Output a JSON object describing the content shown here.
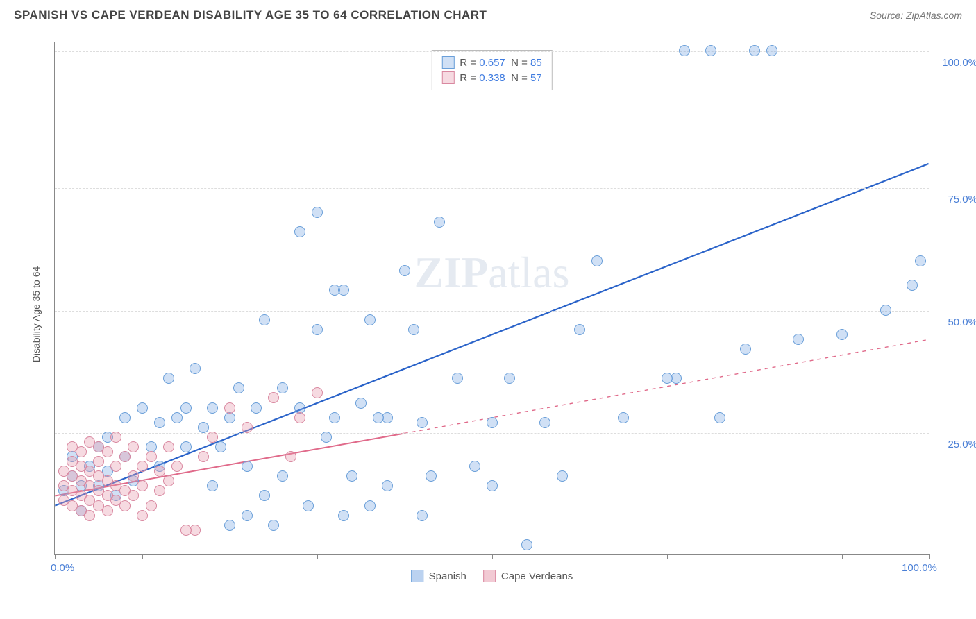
{
  "header": {
    "title": "SPANISH VS CAPE VERDEAN DISABILITY AGE 35 TO 64 CORRELATION CHART",
    "source_prefix": "Source: ",
    "source_name": "ZipAtlas.com"
  },
  "ylabel": "Disability Age 35 to 64",
  "watermark": {
    "zip": "ZIP",
    "atlas": "atlas"
  },
  "chart": {
    "type": "scatter-with-regression",
    "background_color": "#ffffff",
    "grid_color": "#dddddd",
    "axis_color": "#888888",
    "xlim": [
      0,
      100
    ],
    "ylim": [
      0,
      105
    ],
    "x_ticks": [
      0,
      10,
      20,
      30,
      40,
      50,
      60,
      70,
      80,
      90,
      100
    ],
    "x_tick_labels_shown": {
      "0": "0.0%",
      "100": "100.0%"
    },
    "y_gridlines": [
      25,
      50,
      75,
      103
    ],
    "y_tick_labels": {
      "25": "25.0%",
      "50": "50.0%",
      "75": "75.0%",
      "103": "100.0%"
    },
    "tick_label_color": "#4a7fd6",
    "tick_fontsize": 15,
    "title_fontsize": 17,
    "marker_radius": 8,
    "marker_stroke_width": 1,
    "series": [
      {
        "name": "Spanish",
        "color_fill": "rgba(120,165,225,0.35)",
        "color_stroke": "#6a9fd9",
        "line_color": "#2a63c9",
        "line_width": 2.2,
        "line_dash": "none",
        "stats": {
          "R": "0.657",
          "N": "85"
        },
        "regression": {
          "x1": 0,
          "y1": 10,
          "x2": 100,
          "y2": 80,
          "solid_end_x": 100
        },
        "points": [
          [
            1,
            13
          ],
          [
            2,
            16
          ],
          [
            2,
            20
          ],
          [
            3,
            9
          ],
          [
            3,
            14
          ],
          [
            4,
            18
          ],
          [
            5,
            14
          ],
          [
            5,
            22
          ],
          [
            6,
            17
          ],
          [
            6,
            24
          ],
          [
            7,
            12
          ],
          [
            8,
            20
          ],
          [
            8,
            28
          ],
          [
            9,
            15
          ],
          [
            10,
            30
          ],
          [
            11,
            22
          ],
          [
            12,
            18
          ],
          [
            12,
            27
          ],
          [
            13,
            36
          ],
          [
            14,
            28
          ],
          [
            15,
            22
          ],
          [
            15,
            30
          ],
          [
            16,
            38
          ],
          [
            17,
            26
          ],
          [
            18,
            14
          ],
          [
            18,
            30
          ],
          [
            19,
            22
          ],
          [
            20,
            6
          ],
          [
            20,
            28
          ],
          [
            21,
            34
          ],
          [
            22,
            8
          ],
          [
            22,
            18
          ],
          [
            23,
            30
          ],
          [
            24,
            12
          ],
          [
            24,
            48
          ],
          [
            25,
            6
          ],
          [
            26,
            34
          ],
          [
            26,
            16
          ],
          [
            28,
            30
          ],
          [
            28,
            66
          ],
          [
            29,
            10
          ],
          [
            30,
            46
          ],
          [
            30,
            70
          ],
          [
            31,
            24
          ],
          [
            32,
            28
          ],
          [
            32,
            54
          ],
          [
            33,
            8
          ],
          [
            34,
            16
          ],
          [
            36,
            10
          ],
          [
            36,
            48
          ],
          [
            37,
            28
          ],
          [
            38,
            14
          ],
          [
            40,
            58
          ],
          [
            41,
            46
          ],
          [
            42,
            8
          ],
          [
            43,
            16
          ],
          [
            44,
            68
          ],
          [
            46,
            36
          ],
          [
            48,
            18
          ],
          [
            50,
            27
          ],
          [
            50,
            14
          ],
          [
            52,
            36
          ],
          [
            54,
            2
          ],
          [
            56,
            27
          ],
          [
            58,
            16
          ],
          [
            60,
            46
          ],
          [
            62,
            60
          ],
          [
            65,
            28
          ],
          [
            70,
            36
          ],
          [
            71,
            36
          ],
          [
            72,
            103
          ],
          [
            75,
            103
          ],
          [
            76,
            28
          ],
          [
            79,
            42
          ],
          [
            80,
            103
          ],
          [
            82,
            103
          ],
          [
            85,
            44
          ],
          [
            90,
            45
          ],
          [
            95,
            50
          ],
          [
            98,
            55
          ],
          [
            99,
            60
          ],
          [
            33,
            54
          ],
          [
            35,
            31
          ],
          [
            38,
            28
          ],
          [
            42,
            27
          ]
        ]
      },
      {
        "name": "Cape Verdeans",
        "color_fill": "rgba(230,150,170,0.35)",
        "color_stroke": "#d988a0",
        "line_color": "#e06a8a",
        "line_width": 2.0,
        "line_dash": "dashed-after-solid",
        "stats": {
          "R": "0.338",
          "N": "57"
        },
        "regression": {
          "x1": 0,
          "y1": 12,
          "x2": 100,
          "y2": 44,
          "solid_end_x": 40
        },
        "points": [
          [
            1,
            11
          ],
          [
            1,
            14
          ],
          [
            1,
            17
          ],
          [
            2,
            10
          ],
          [
            2,
            13
          ],
          [
            2,
            16
          ],
          [
            2,
            19
          ],
          [
            2,
            22
          ],
          [
            3,
            9
          ],
          [
            3,
            12
          ],
          [
            3,
            15
          ],
          [
            3,
            18
          ],
          [
            3,
            21
          ],
          [
            4,
            8
          ],
          [
            4,
            11
          ],
          [
            4,
            14
          ],
          [
            4,
            17
          ],
          [
            4,
            23
          ],
          [
            5,
            10
          ],
          [
            5,
            13
          ],
          [
            5,
            16
          ],
          [
            5,
            19
          ],
          [
            5,
            22
          ],
          [
            6,
            9
          ],
          [
            6,
            12
          ],
          [
            6,
            15
          ],
          [
            6,
            21
          ],
          [
            7,
            11
          ],
          [
            7,
            14
          ],
          [
            7,
            18
          ],
          [
            7,
            24
          ],
          [
            8,
            10
          ],
          [
            8,
            13
          ],
          [
            8,
            20
          ],
          [
            9,
            12
          ],
          [
            9,
            16
          ],
          [
            9,
            22
          ],
          [
            10,
            8
          ],
          [
            10,
            14
          ],
          [
            10,
            18
          ],
          [
            11,
            10
          ],
          [
            11,
            20
          ],
          [
            12,
            13
          ],
          [
            12,
            17
          ],
          [
            13,
            15
          ],
          [
            13,
            22
          ],
          [
            14,
            18
          ],
          [
            15,
            5
          ],
          [
            16,
            5
          ],
          [
            17,
            20
          ],
          [
            18,
            24
          ],
          [
            20,
            30
          ],
          [
            22,
            26
          ],
          [
            25,
            32
          ],
          [
            27,
            20
          ],
          [
            28,
            28
          ],
          [
            30,
            33
          ]
        ]
      }
    ]
  },
  "legend_top": {
    "label_R": "R =",
    "label_N": "N ="
  },
  "legend_bottom": [
    {
      "label": "Spanish",
      "fill": "rgba(120,165,225,0.5)",
      "border": "#6a9fd9"
    },
    {
      "label": "Cape Verdeans",
      "fill": "rgba(230,150,170,0.5)",
      "border": "#d988a0"
    }
  ]
}
